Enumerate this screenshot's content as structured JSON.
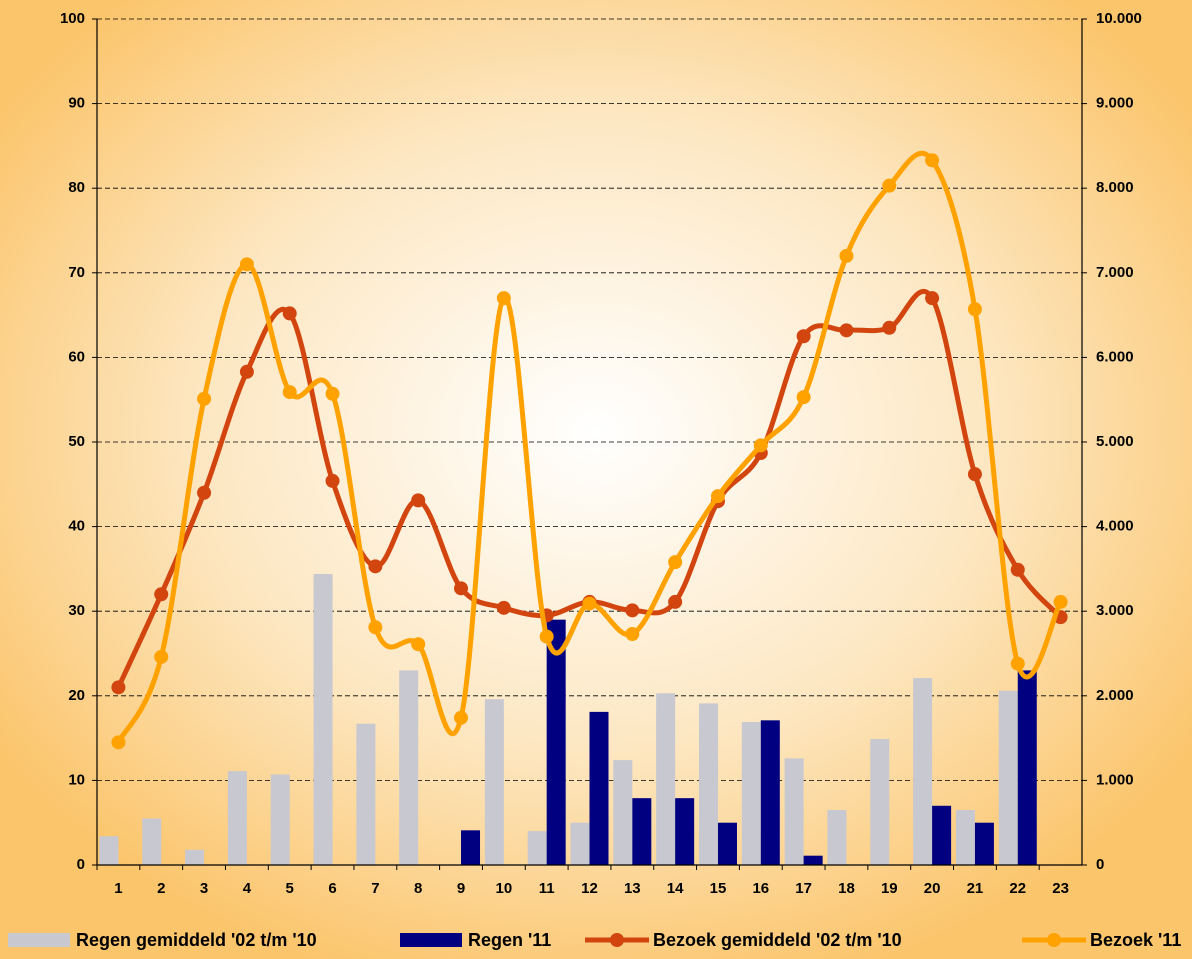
{
  "chart_data": {
    "type": "bar",
    "categories": [
      "1",
      "2",
      "3",
      "4",
      "5",
      "6",
      "7",
      "8",
      "9",
      "10",
      "11",
      "12",
      "13",
      "14",
      "15",
      "16",
      "17",
      "18",
      "19",
      "20",
      "21",
      "22",
      "23"
    ],
    "series": [
      {
        "name": "Regen gemiddeld '02 t/m '10",
        "type": "bar",
        "color": "#c8c8d0",
        "values": [
          3.4,
          5.5,
          1.8,
          11.1,
          10.7,
          34.4,
          16.7,
          23.0,
          0,
          19.6,
          4.0,
          5.0,
          12.4,
          20.3,
          19.1,
          16.9,
          12.6,
          6.5,
          14.9,
          22.1,
          6.5,
          20.6,
          0
        ]
      },
      {
        "name": "Regen '11",
        "type": "bar",
        "color": "#000080",
        "values": [
          0,
          0,
          0,
          0,
          0,
          0,
          0,
          0,
          4.1,
          0,
          29.0,
          18.1,
          7.9,
          7.9,
          5.0,
          17.1,
          1.1,
          0,
          0,
          7.0,
          5.0,
          23.0,
          0
        ]
      },
      {
        "name": "Bezoek gemiddeld '02 t/m '10",
        "type": "line",
        "axis": "y2",
        "color": "#d2450f",
        "values": [
          2100,
          3200,
          4400,
          5830,
          6520,
          4540,
          3530,
          4310,
          3270,
          3040,
          2950,
          3110,
          3010,
          3110,
          4300,
          4870,
          6250,
          6320,
          6350,
          6700,
          4620,
          3490,
          2930
        ]
      },
      {
        "name": "Bezoek '11",
        "type": "line",
        "axis": "y2",
        "color": "#ffa200",
        "values": [
          1450,
          2460,
          5510,
          7100,
          5590,
          5570,
          2810,
          2610,
          1740,
          6700,
          2700,
          3090,
          2730,
          3580,
          4360,
          4960,
          5530,
          7200,
          8030,
          8330,
          6570,
          2380,
          3110
        ]
      }
    ],
    "ylim": [
      0,
      100
    ],
    "yticks": [
      0,
      10,
      20,
      30,
      40,
      50,
      60,
      70,
      80,
      90,
      100
    ],
    "y2lim": [
      0,
      10000
    ],
    "y2ticks": [
      0,
      {
        "value": 1000,
        "label": "1.000"
      },
      {
        "value": 2000,
        "label": "2.000"
      },
      {
        "value": 3000,
        "label": "3.000"
      },
      {
        "value": 4000,
        "label": "4.000"
      },
      {
        "value": 5000,
        "label": "5.000"
      },
      {
        "value": 6000,
        "label": "6.000"
      },
      {
        "value": 7000,
        "label": "7.000"
      },
      {
        "value": 8000,
        "label": "8.000"
      },
      {
        "value": 9000,
        "label": "9.000"
      },
      {
        "value": 10000,
        "label": "10.000"
      }
    ],
    "grid": true,
    "legend": "bottom"
  }
}
